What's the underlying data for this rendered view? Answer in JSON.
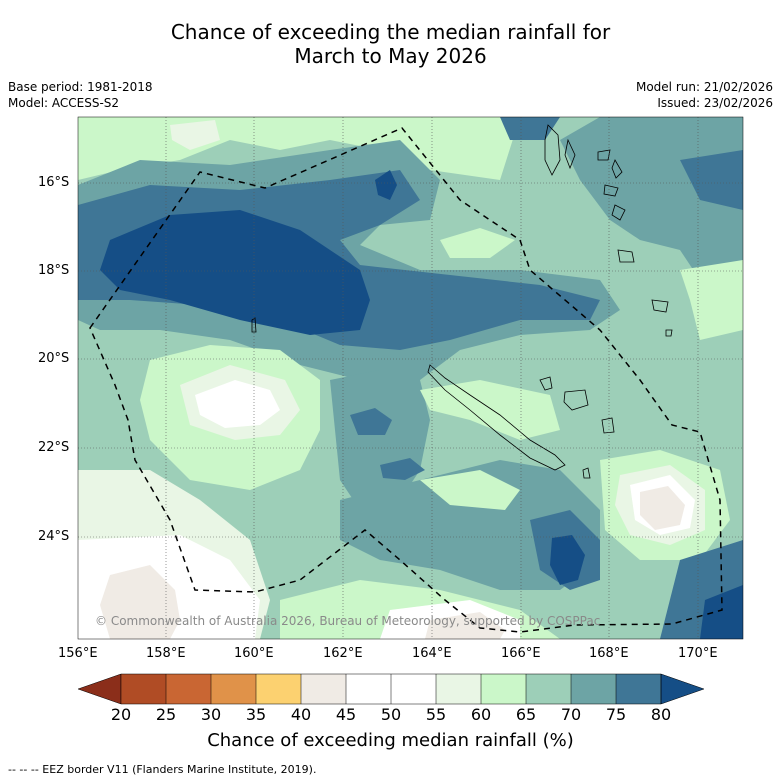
{
  "title": {
    "line1": "Chance of exceeding the median rainfall for",
    "line2": "March to May 2026"
  },
  "metadata": {
    "base_period": "Base period: 1981-2018",
    "model": "Model: ACCESS-S2",
    "model_run": "Model run: 21/02/2026",
    "issued": "Issued: 23/02/2026"
  },
  "axes": {
    "latitude_labels": [
      "16°S",
      "18°S",
      "20°S",
      "22°S",
      "24°S"
    ],
    "longitude_labels": [
      "156°E",
      "158°E",
      "160°E",
      "162°E",
      "164°E",
      "166°E",
      "168°E",
      "170°E"
    ]
  },
  "copyright": "© Commonwealth of Australia 2026, Bureau of Meteorology, supported by COSPPac",
  "colorbar": {
    "title": "Chance of exceeding median rainfall (%)",
    "ticks": [
      "20",
      "25",
      "30",
      "35",
      "40",
      "45",
      "50",
      "55",
      "60",
      "65",
      "70",
      "75",
      "80"
    ],
    "colors": [
      "#8b2e1a",
      "#b04c25",
      "#c96633",
      "#e09249",
      "#fcd170",
      "#f0ebe5",
      "#ffffff",
      "#ffffff",
      "#e9f6e5",
      "#cbf7c9",
      "#9dcfb8",
      "#6da4a5",
      "#3f7696",
      "#154e86"
    ]
  },
  "footnote": "--  --  -- EEZ border V11 (Flanders Marine Institute, 2019).",
  "legend_colors": {
    "c35": "#fcd170",
    "c40": "#f0ebe5",
    "c45": "#ffffff",
    "c55": "#e9f6e5",
    "c60": "#cbf7c9",
    "c65": "#9dcfb8",
    "c70": "#6da4a5",
    "c75": "#3f7696",
    "c80": "#154e86"
  }
}
